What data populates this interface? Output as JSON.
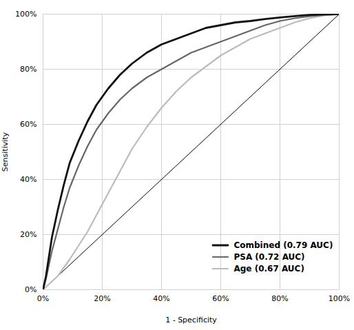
{
  "chart_data": {
    "type": "line",
    "xlabel": "1 - Specificity",
    "ylabel": "Sensitivity",
    "xlim": [
      0,
      1
    ],
    "ylim": [
      0,
      1
    ],
    "xticks": [
      {
        "value": 0,
        "label": "0%"
      },
      {
        "value": 0.2,
        "label": "20%"
      },
      {
        "value": 0.4,
        "label": "40%"
      },
      {
        "value": 0.6,
        "label": "60%"
      },
      {
        "value": 0.8,
        "label": "80%"
      },
      {
        "value": 1.0,
        "label": "100%"
      }
    ],
    "yticks": [
      {
        "value": 0,
        "label": "0%"
      },
      {
        "value": 0.2,
        "label": "20%"
      },
      {
        "value": 0.4,
        "label": "40%"
      },
      {
        "value": 0.6,
        "label": "60%"
      },
      {
        "value": 0.8,
        "label": "80%"
      },
      {
        "value": 1.0,
        "label": "100%"
      }
    ],
    "grid": true,
    "legend": "lower right",
    "x": [
      0.0,
      0.01,
      0.02,
      0.03,
      0.05,
      0.07,
      0.09,
      0.12,
      0.15,
      0.18,
      0.22,
      0.26,
      0.3,
      0.35,
      0.4,
      0.45,
      0.5,
      0.55,
      0.6,
      0.65,
      0.7,
      0.75,
      0.8,
      0.85,
      0.9,
      0.95,
      1.0
    ],
    "series": [
      {
        "name": "Combined (0.79 AUC)",
        "color": "#111111",
        "values": [
          0.0,
          0.05,
          0.12,
          0.19,
          0.29,
          0.38,
          0.46,
          0.54,
          0.61,
          0.67,
          0.73,
          0.78,
          0.82,
          0.86,
          0.89,
          0.91,
          0.93,
          0.95,
          0.96,
          0.97,
          0.975,
          0.982,
          0.988,
          0.993,
          0.997,
          0.999,
          1.0
        ]
      },
      {
        "name": "PSA (0.72 AUC)",
        "color": "#666666",
        "values": [
          0.0,
          0.04,
          0.09,
          0.14,
          0.22,
          0.3,
          0.37,
          0.45,
          0.52,
          0.58,
          0.64,
          0.69,
          0.73,
          0.77,
          0.8,
          0.83,
          0.86,
          0.88,
          0.9,
          0.92,
          0.94,
          0.96,
          0.975,
          0.985,
          0.992,
          0.997,
          1.0
        ]
      },
      {
        "name": "Age (0.67 AUC)",
        "color": "#bbbbbb",
        "values": [
          0.0,
          0.01,
          0.02,
          0.03,
          0.05,
          0.08,
          0.11,
          0.16,
          0.21,
          0.27,
          0.35,
          0.43,
          0.51,
          0.59,
          0.66,
          0.72,
          0.77,
          0.81,
          0.85,
          0.88,
          0.91,
          0.93,
          0.95,
          0.97,
          0.985,
          0.995,
          1.0
        ]
      }
    ],
    "reference": {
      "x": [
        0,
        1
      ],
      "y": [
        0,
        1
      ],
      "color": "#000000"
    }
  }
}
